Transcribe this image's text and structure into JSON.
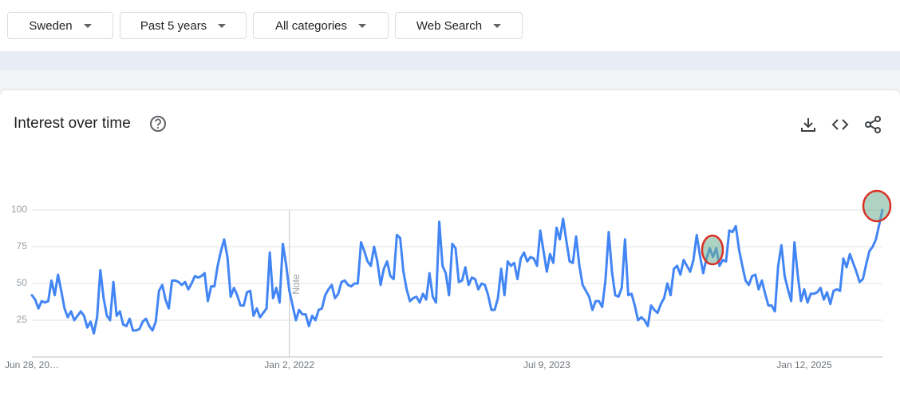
{
  "filters": [
    "Sweden",
    "Past 5 years",
    "All categories",
    "Web Search"
  ],
  "header": {
    "title": "Interest over time"
  },
  "chart_data": {
    "type": "line",
    "color": "#4285f4",
    "values": [
      42,
      39,
      33,
      38,
      37,
      38,
      52,
      42,
      56,
      45,
      33,
      27,
      31,
      25,
      28,
      31,
      28,
      20,
      24,
      16,
      27,
      59,
      40,
      28,
      25,
      51,
      28,
      31,
      22,
      21,
      26,
      18,
      18,
      19,
      24,
      26,
      21,
      18,
      24,
      45,
      49,
      39,
      33,
      52,
      52,
      51,
      49,
      51,
      46,
      50,
      55,
      54,
      55,
      57,
      38,
      48,
      48,
      62,
      72,
      80,
      68,
      41,
      47,
      42,
      35,
      35,
      44,
      45,
      28,
      33,
      27,
      30,
      33,
      71,
      40,
      47,
      37,
      77,
      63,
      45,
      35,
      25,
      32,
      29,
      29,
      21,
      28,
      25,
      32,
      33,
      42,
      46,
      49,
      40,
      43,
      51,
      52,
      49,
      48,
      50,
      50,
      78,
      72,
      65,
      62,
      75,
      65,
      49,
      60,
      65,
      55,
      53,
      83,
      81,
      58,
      46,
      38,
      40,
      41,
      37,
      43,
      39,
      57,
      41,
      37,
      92,
      62,
      57,
      42,
      77,
      74,
      51,
      52,
      61,
      49,
      54,
      53,
      46,
      50,
      49,
      42,
      32,
      32,
      40,
      60,
      42,
      65,
      62,
      64,
      53,
      67,
      71,
      65,
      68,
      67,
      62,
      86,
      72,
      58,
      70,
      64,
      88,
      80,
      94,
      79,
      65,
      64,
      82,
      62,
      49,
      45,
      41,
      32,
      38,
      38,
      34,
      52,
      85,
      58,
      42,
      41,
      47,
      80,
      42,
      43,
      35,
      25,
      27,
      25,
      21,
      35,
      32,
      30,
      36,
      40,
      50,
      42,
      60,
      62,
      56,
      66,
      62,
      58,
      66,
      83,
      69,
      57,
      67,
      74,
      68,
      74,
      62,
      66,
      65,
      86,
      85,
      89,
      73,
      62,
      52,
      49,
      55,
      56,
      46,
      52,
      43,
      35,
      35,
      31,
      62,
      76,
      55,
      46,
      38,
      78,
      56,
      38,
      46,
      37,
      43,
      43,
      44,
      47,
      39,
      44,
      36,
      45,
      46,
      45,
      67,
      61,
      70,
      64,
      58,
      51,
      53,
      63,
      72,
      75,
      80,
      90,
      100
    ],
    "xlim": [
      0,
      261
    ],
    "xticks": [
      {
        "value": 0,
        "label": "Jun 28, 20…"
      },
      {
        "value": 79,
        "label": "Jan 2, 2022"
      },
      {
        "value": 158,
        "label": "Jul 9, 2023"
      },
      {
        "value": 237,
        "label": "Jan 12, 2025"
      }
    ],
    "ylim": [
      0,
      100
    ],
    "yticks": [
      25,
      50,
      75,
      100
    ],
    "grid": true,
    "annotations": [
      {
        "x": 79,
        "label": "Note"
      }
    ]
  }
}
